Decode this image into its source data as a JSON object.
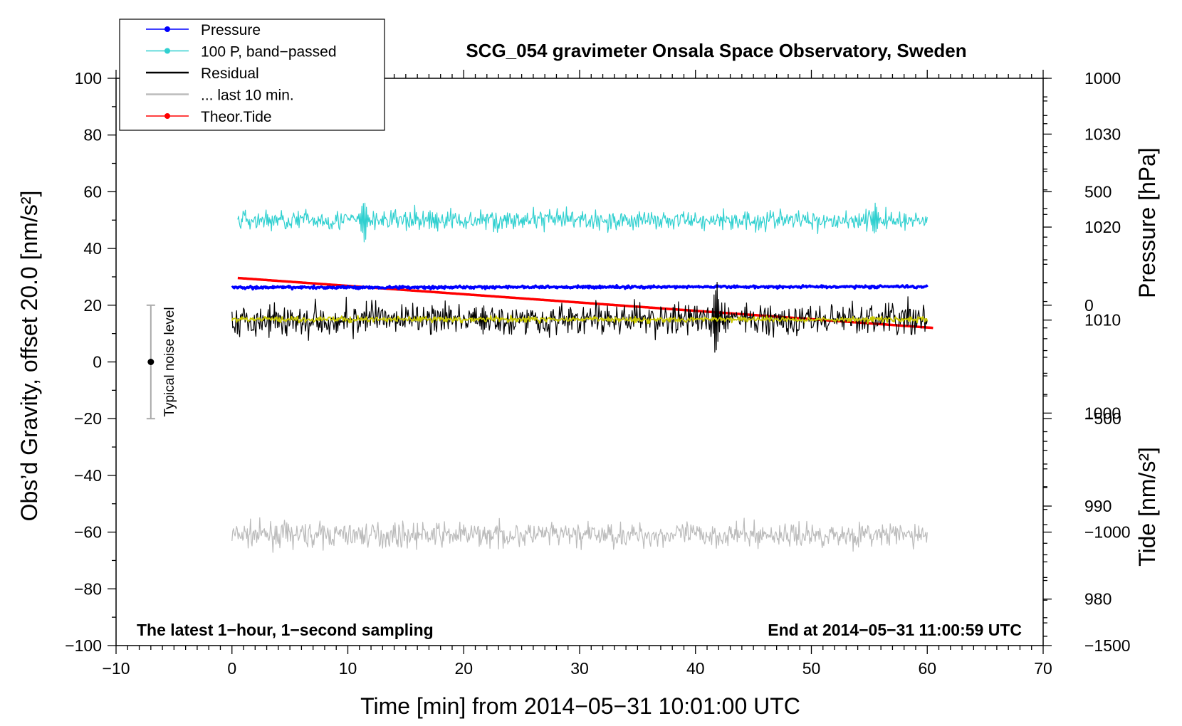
{
  "chart_data": {
    "type": "line",
    "title": "SCG_054 gravimeter Onsala Space Observatory, Sweden",
    "xlabel": "Time [min] from 2014−05−31 10:01:00 UTC",
    "ylabel_left": "Obs’d Gravity, offset 20.0 [nm/s²]",
    "ylabel_right_top": "Pressure [hPa]",
    "ylabel_right_bottom": "Tide [nm/s²]",
    "xlim": [
      -10,
      70
    ],
    "ylim_left": [
      -100,
      100
    ],
    "ylim_pressure": [
      975,
      1036
    ],
    "ylim_tide": [
      -1500,
      1000
    ],
    "x_ticks": [
      -10,
      0,
      10,
      20,
      30,
      40,
      50,
      60,
      70
    ],
    "x_tick_labels": [
      "−10",
      "0",
      "10",
      "20",
      "30",
      "40",
      "50",
      "60",
      "70"
    ],
    "y_ticks_left": [
      -100,
      -80,
      -60,
      -40,
      -20,
      0,
      20,
      40,
      60,
      80,
      100
    ],
    "y_tick_labels_left": [
      "−100",
      "−80",
      "−60",
      "−40",
      "−20",
      "0",
      "20",
      "40",
      "60",
      "80",
      "100"
    ],
    "pressure_ticks": [
      980,
      990,
      1000,
      1010,
      1020,
      1030
    ],
    "pressure_tick_labels": [
      "980",
      "990",
      "1000",
      "1010",
      "1020",
      "1030"
    ],
    "tide_ticks": [
      -1500,
      -1000,
      -500,
      0,
      500,
      1000
    ],
    "tide_tick_labels": [
      "−1500",
      "−1000",
      "−500",
      "0",
      "500",
      "1000"
    ],
    "series": [
      {
        "name": "Pressure",
        "axis": "pressure",
        "color": "#0000ff",
        "x_range": [
          0,
          60
        ],
        "level": 1013.5,
        "trend": 0.1,
        "noise": 0.1
      },
      {
        "name": "100 P, band−passed",
        "axis": "left",
        "color": "#30d0d0",
        "x_range": [
          0.5,
          60
        ],
        "level": 50,
        "noise": 2.5,
        "events": [
          {
            "x": 11.4,
            "min": 40,
            "max": 56
          },
          {
            "x": 55.5,
            "min": 43,
            "max": 56
          }
        ]
      },
      {
        "name": "Residual",
        "axis": "left",
        "color": "#000000",
        "x_range": [
          0,
          60
        ],
        "level": 15,
        "noise": 4,
        "events": [
          {
            "x": 21.7,
            "min": 8,
            "max": 22
          },
          {
            "x": 41.8,
            "min": -1,
            "max": 32
          }
        ]
      },
      {
        "name": "... last 10 min.",
        "axis": "left",
        "color": "#bbbbbb",
        "x_range": [
          0,
          60
        ],
        "level": -61,
        "noise": 3
      },
      {
        "name": "Theor.Tide",
        "axis": "tide",
        "color": "#ff0000",
        "x_range": [
          0.5,
          60.5
        ],
        "start": 120,
        "end": -100
      },
      {
        "name": "smoothed residual",
        "axis": "left",
        "color": "#c8c800",
        "x_range": [
          0,
          60
        ],
        "level": 15,
        "noise": 0.7,
        "in_legend": false
      }
    ],
    "legend": {
      "placement": "top-left",
      "entries": [
        {
          "label": "Pressure",
          "color": "#0000ff",
          "marker": true
        },
        {
          "label": "100 P, band−passed",
          "color": "#30d0d0",
          "marker": true
        },
        {
          "label": "Residual",
          "color": "#000000",
          "marker": false
        },
        {
          "label": "... last 10 min.",
          "color": "#bbbbbb",
          "marker": false
        },
        {
          "label": "Theor.Tide",
          "color": "#ff0000",
          "marker": true
        }
      ]
    },
    "noise_bar": {
      "label": "Typical noise level",
      "x": -7,
      "y": 0,
      "low": -20,
      "high": 20
    },
    "annotations": {
      "bottom_left": "The latest 1−hour, 1−second sampling",
      "bottom_right": "End at 2014−05−31 11:00:59 UTC"
    }
  }
}
